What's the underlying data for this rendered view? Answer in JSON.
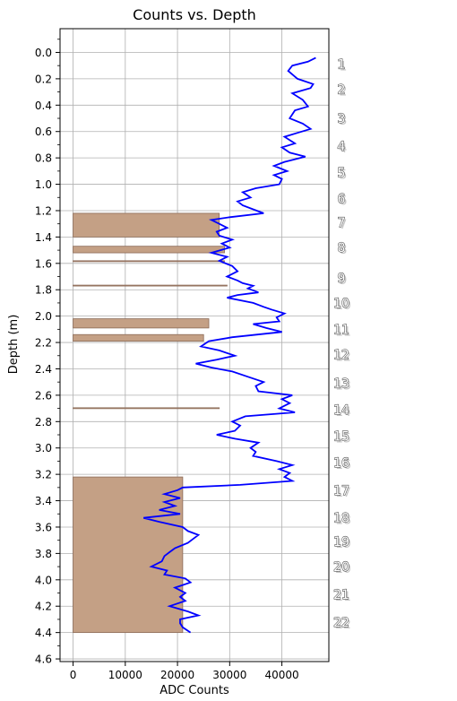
{
  "chart_data": {
    "type": "line",
    "title": "Counts vs. Depth",
    "xlabel": "ADC Counts",
    "ylabel": "Depth (m)",
    "xlim": [
      -2500,
      49000
    ],
    "ylim": [
      4.62,
      -0.18
    ],
    "x_ticks": [
      0,
      10000,
      20000,
      30000,
      40000
    ],
    "y_ticks": [
      0.0,
      0.2,
      0.4,
      0.6,
      0.8,
      1.0,
      1.2,
      1.4,
      1.6,
      1.8,
      2.0,
      2.2,
      2.4,
      2.6,
      2.8,
      3.0,
      3.2,
      3.4,
      3.6,
      3.8,
      4.0,
      4.2,
      4.4,
      4.6
    ],
    "x_tick_labels": [
      "0",
      "10000",
      "20000",
      "30000",
      "40000"
    ],
    "y_tick_labels": [
      "0.0",
      "0.2",
      "0.4",
      "0.6",
      "0.8",
      "1.0",
      "1.2",
      "1.4",
      "1.6",
      "1.8",
      "2.0",
      "2.2",
      "2.4",
      "2.6",
      "2.8",
      "3.0",
      "3.2",
      "3.4",
      "3.6",
      "3.8",
      "4.0",
      "4.2",
      "4.4",
      "4.6"
    ],
    "grid": true,
    "line_color": "#0000ff",
    "fill_color": "#c4a085",
    "fill_edge_color": "#8b6a57",
    "series": [
      {
        "x": [
          46500,
          45000,
          42000,
          41200,
          43000,
          46000,
          45500,
          42000,
          44000,
          45000,
          42500,
          41500,
          44000,
          45500,
          43000,
          40500,
          42500,
          40000,
          41500,
          44500,
          40500,
          38500,
          41000,
          38500,
          40000,
          39500,
          35000,
          32500,
          34000,
          31500,
          32500,
          34500,
          36500,
          30000,
          26500,
          28000,
          29500,
          27500,
          28000,
          30500,
          28500,
          30000,
          26500,
          29500,
          28000,
          30500,
          31500,
          29500,
          31500,
          32500,
          34500,
          33500,
          35500,
          31500,
          29500,
          34500,
          36500,
          38000,
          40500,
          39000,
          39500,
          34500,
          37000,
          40000,
          30500,
          26000,
          24500,
          28000,
          31000,
          27500,
          23500,
          26500,
          30500,
          33500,
          36500,
          35000,
          35500,
          42000,
          40000,
          41500,
          39500,
          42500,
          33000,
          30500,
          32000,
          31000,
          27500,
          31000,
          35500,
          34000,
          35000,
          34500,
          39000,
          42000,
          39500,
          41500,
          40500,
          42000,
          32000,
          21000,
          20000,
          17500,
          20500,
          17500,
          19500,
          16500,
          20500,
          13500,
          16500,
          21000,
          22000,
          24000,
          23000,
          22000,
          19500,
          18500,
          17500,
          17000,
          15000,
          18000,
          17500,
          21500,
          22500,
          19500,
          21500,
          20500,
          21500,
          18500,
          22000,
          24000,
          20500,
          20500,
          21000,
          22500
        ],
        "y": [
          0.04,
          0.07,
          0.1,
          0.14,
          0.2,
          0.24,
          0.27,
          0.31,
          0.36,
          0.41,
          0.44,
          0.5,
          0.54,
          0.58,
          0.61,
          0.64,
          0.69,
          0.72,
          0.76,
          0.79,
          0.83,
          0.86,
          0.9,
          0.93,
          0.96,
          1.0,
          1.03,
          1.06,
          1.1,
          1.13,
          1.16,
          1.19,
          1.22,
          1.25,
          1.27,
          1.3,
          1.33,
          1.36,
          1.39,
          1.42,
          1.45,
          1.48,
          1.52,
          1.55,
          1.58,
          1.62,
          1.66,
          1.7,
          1.73,
          1.75,
          1.77,
          1.79,
          1.82,
          1.84,
          1.86,
          1.9,
          1.93,
          1.95,
          1.98,
          2.01,
          2.04,
          2.06,
          2.09,
          2.12,
          2.16,
          2.19,
          2.23,
          2.26,
          2.3,
          2.33,
          2.36,
          2.39,
          2.42,
          2.46,
          2.5,
          2.53,
          2.57,
          2.6,
          2.63,
          2.66,
          2.7,
          2.73,
          2.76,
          2.8,
          2.83,
          2.87,
          2.9,
          2.93,
          2.96,
          3.0,
          3.03,
          3.06,
          3.1,
          3.13,
          3.16,
          3.19,
          3.22,
          3.25,
          3.28,
          3.3,
          3.32,
          3.35,
          3.38,
          3.41,
          3.44,
          3.47,
          3.5,
          3.53,
          3.56,
          3.6,
          3.63,
          3.66,
          3.69,
          3.72,
          3.76,
          3.79,
          3.82,
          3.86,
          3.9,
          3.93,
          3.96,
          3.99,
          4.02,
          4.06,
          4.1,
          4.13,
          4.16,
          4.2,
          4.24,
          4.27,
          4.3,
          4.33,
          4.36,
          4.4
        ]
      }
    ],
    "bands": [
      {
        "top": 1.22,
        "bottom": 1.4,
        "x_end": 28000
      },
      {
        "top": 1.47,
        "bottom": 1.52,
        "x_end": 29000
      },
      {
        "top": 1.58,
        "bottom": 1.585,
        "x_end": 29000
      },
      {
        "top": 1.765,
        "bottom": 1.77,
        "x_end": 29500
      },
      {
        "top": 2.02,
        "bottom": 2.09,
        "x_end": 26000
      },
      {
        "top": 2.14,
        "bottom": 2.19,
        "x_end": 25000
      },
      {
        "top": 2.695,
        "bottom": 2.7,
        "x_end": 28000
      },
      {
        "top": 3.22,
        "bottom": 4.4,
        "x_end": 21000
      }
    ],
    "annotations": [
      {
        "text": "1",
        "depth": 0.09
      },
      {
        "text": "2",
        "depth": 0.28
      },
      {
        "text": "3",
        "depth": 0.5
      },
      {
        "text": "4",
        "depth": 0.71
      },
      {
        "text": "5",
        "depth": 0.91
      },
      {
        "text": "6",
        "depth": 1.11
      },
      {
        "text": "7",
        "depth": 1.29
      },
      {
        "text": "8",
        "depth": 1.48
      },
      {
        "text": "9",
        "depth": 1.71
      },
      {
        "text": "10",
        "depth": 1.9
      },
      {
        "text": "11",
        "depth": 2.1
      },
      {
        "text": "12",
        "depth": 2.29
      },
      {
        "text": "13",
        "depth": 2.51
      },
      {
        "text": "14",
        "depth": 2.71
      },
      {
        "text": "15",
        "depth": 2.91
      },
      {
        "text": "16",
        "depth": 3.11
      },
      {
        "text": "17",
        "depth": 3.32
      },
      {
        "text": "18",
        "depth": 3.53
      },
      {
        "text": "19",
        "depth": 3.71
      },
      {
        "text": "20",
        "depth": 3.9
      },
      {
        "text": "21",
        "depth": 4.11
      },
      {
        "text": "22",
        "depth": 4.32
      }
    ]
  }
}
